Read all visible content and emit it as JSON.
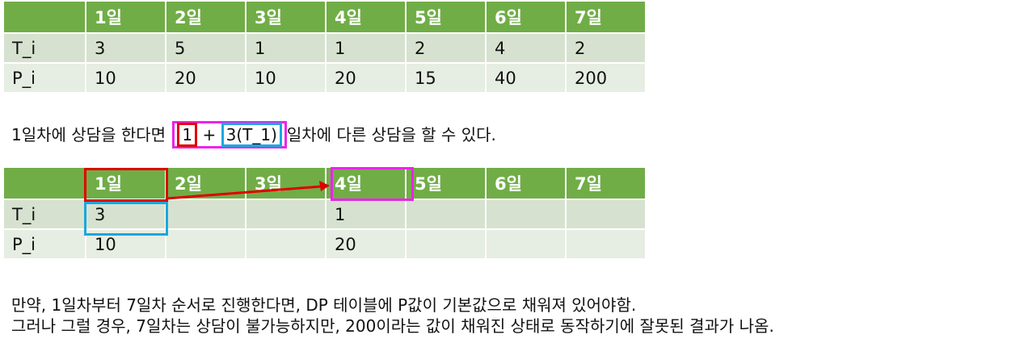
{
  "table1": {
    "header": [
      "",
      "1일",
      "2일",
      "3일",
      "4일",
      "5일",
      "6일",
      "7일"
    ],
    "rows": [
      [
        "T_i",
        "3",
        "5",
        "1",
        "1",
        "2",
        "4",
        "2"
      ],
      [
        "P_i",
        "10",
        "20",
        "10",
        "20",
        "15",
        "40",
        "200"
      ]
    ]
  },
  "sentence": {
    "before": "1일차에 상담을 한다면",
    "a": "1",
    "plus": "+",
    "b": "3(T_1)",
    "after": "일차에 다른 상담을 할 수 있다."
  },
  "table2": {
    "header": [
      "",
      "1일",
      "2일",
      "3일",
      "4일",
      "5일",
      "6일",
      "7일"
    ],
    "rows": [
      [
        "T_i",
        "3",
        "",
        "",
        "1",
        "",
        "",
        ""
      ],
      [
        "P_i",
        "10",
        "",
        "",
        "20",
        "",
        "",
        ""
      ]
    ]
  },
  "notes": [
    "만약, 1일차부터 7일차 순서로 진행한다면, DP 테이블에 P값이 기본값으로 채워져 있어야함.",
    "그러나 그럴 경우, 7일차는 상담이 불가능하지만, 200이라는 값이 채워진 상태로 동작하기에 잘못된 결과가 나옴."
  ],
  "colors": {
    "header": "#70ad47",
    "highlight_red": "#e00000",
    "highlight_magenta": "#ee22ee",
    "highlight_cyan": "#1aa7e0"
  }
}
